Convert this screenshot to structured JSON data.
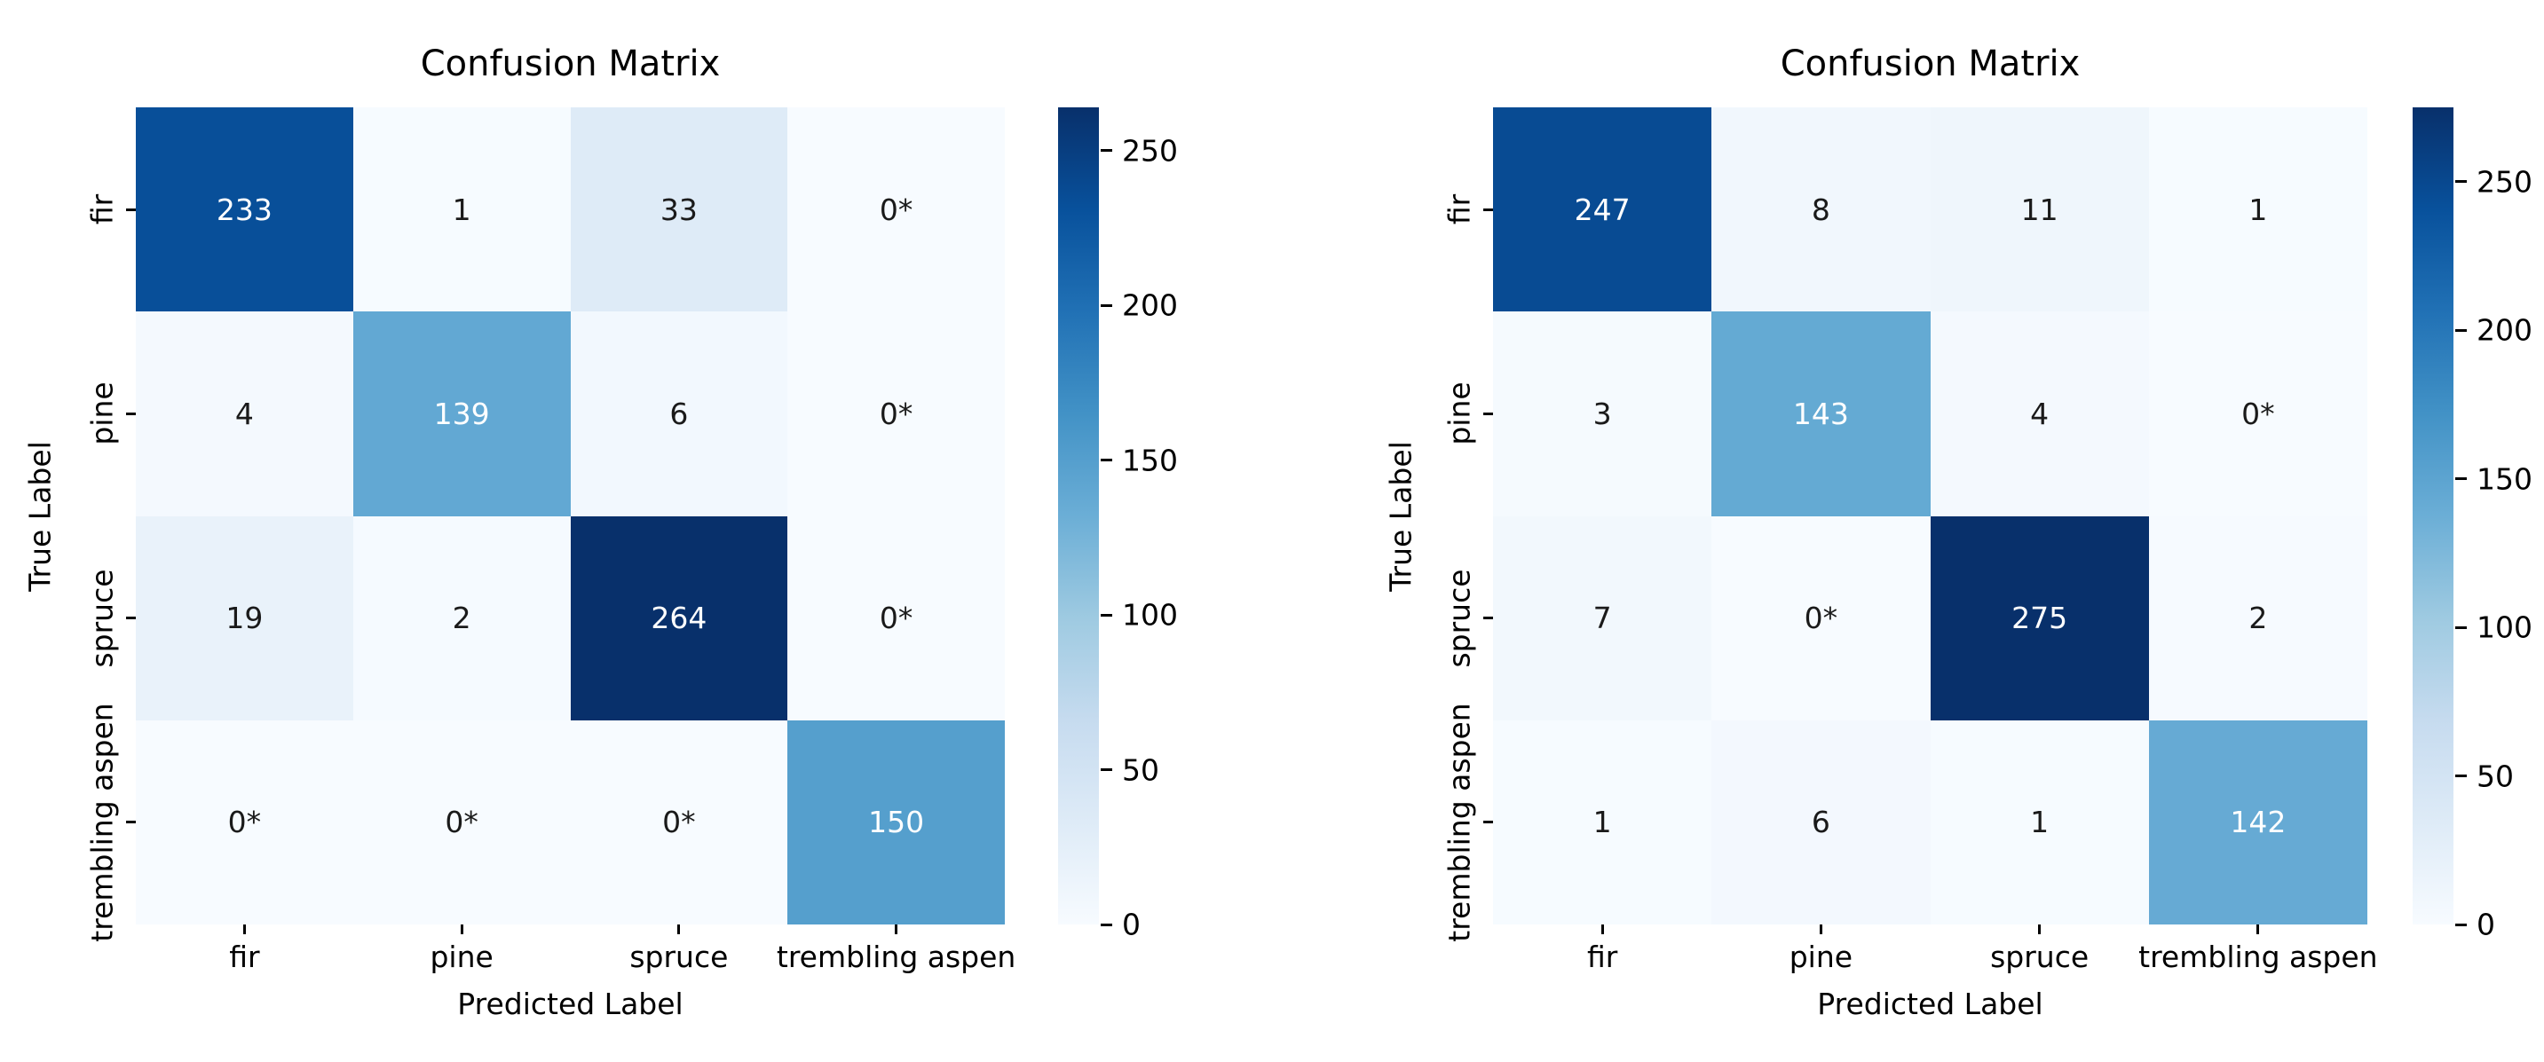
{
  "page": {
    "background": "#ffffff",
    "text_color": "#000000"
  },
  "chart_data": [
    {
      "type": "heatmap",
      "title": "Confusion Matrix",
      "xlabel": "Predicted Label",
      "ylabel": "True Label",
      "x_categories": [
        "fir",
        "pine",
        "spruce",
        "trembling aspen"
      ],
      "y_categories": [
        "fir",
        "pine",
        "spruce",
        "trembling aspen"
      ],
      "values": [
        [
          233,
          1,
          33,
          0
        ],
        [
          4,
          139,
          6,
          0
        ],
        [
          19,
          2,
          264,
          0
        ],
        [
          0,
          0,
          0,
          150
        ]
      ],
      "cell_labels": [
        [
          "233",
          "1",
          "33",
          "0*"
        ],
        [
          "4",
          "139",
          "6",
          "0*"
        ],
        [
          "19",
          "2",
          "264",
          "0*"
        ],
        [
          "0*",
          "0*",
          "0*",
          "150"
        ]
      ],
      "vmin": 0,
      "vmax": 264,
      "colorbar_ticks": [
        0,
        50,
        100,
        150,
        200,
        250
      ],
      "colormap": "Blues",
      "colormap_stops": [
        "#f7fbff",
        "#deebf7",
        "#c6dbef",
        "#9ecae1",
        "#6baed6",
        "#4292c6",
        "#2171b5",
        "#08519c",
        "#08306b"
      ],
      "annotation_light_text": "#ffffff",
      "annotation_dark_text": "#1a1a1a",
      "grid": false,
      "legend": "colorbar-right"
    },
    {
      "type": "heatmap",
      "title": "Confusion Matrix",
      "xlabel": "Predicted Label",
      "ylabel": "True Label",
      "x_categories": [
        "fir",
        "pine",
        "spruce",
        "trembling aspen"
      ],
      "y_categories": [
        "fir",
        "pine",
        "spruce",
        "trembling aspen"
      ],
      "values": [
        [
          247,
          8,
          11,
          1
        ],
        [
          3,
          143,
          4,
          0
        ],
        [
          7,
          0,
          275,
          2
        ],
        [
          1,
          6,
          1,
          142
        ]
      ],
      "cell_labels": [
        [
          "247",
          "8",
          "11",
          "1"
        ],
        [
          "3",
          "143",
          "4",
          "0*"
        ],
        [
          "7",
          "0*",
          "275",
          "2"
        ],
        [
          "1",
          "6",
          "1",
          "142"
        ]
      ],
      "vmin": 0,
      "vmax": 275,
      "colorbar_ticks": [
        0,
        50,
        100,
        150,
        200,
        250
      ],
      "colormap": "Blues",
      "colormap_stops": [
        "#f7fbff",
        "#deebf7",
        "#c6dbef",
        "#9ecae1",
        "#6baed6",
        "#4292c6",
        "#2171b5",
        "#08519c",
        "#08306b"
      ],
      "annotation_light_text": "#ffffff",
      "annotation_dark_text": "#1a1a1a",
      "grid": false,
      "legend": "colorbar-right"
    }
  ]
}
